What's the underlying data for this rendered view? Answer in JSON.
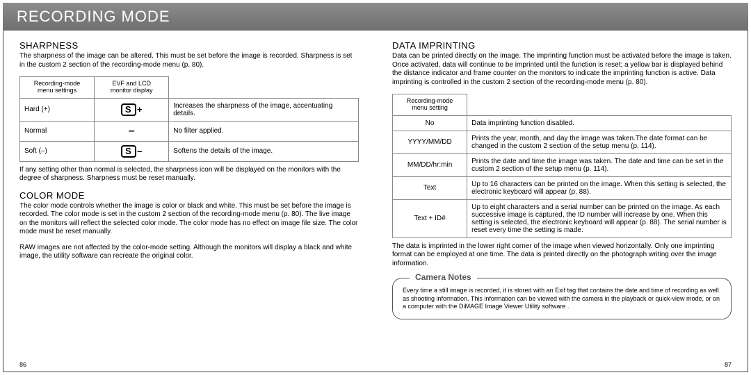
{
  "header": {
    "title": "RECORDING MODE"
  },
  "left": {
    "sharpness": {
      "heading": "SHARPNESS",
      "intro": "The sharpness of the image can be altered. This must be set before the image is recorded. Sharpness is set in the custom 2 section of the recording-mode menu (p. 80).",
      "table_headers": {
        "col1": "Recording-mode\nmenu settings",
        "col2": "EVF and LCD\nmonitor display"
      },
      "rows": [
        {
          "setting": "Hard (+)",
          "icon": "S+",
          "desc": "Increases the sharpness of the image, accentuating details."
        },
        {
          "setting": "Normal",
          "icon": "–",
          "desc": "No filter applied."
        },
        {
          "setting": "Soft (–)",
          "icon": "S-",
          "desc": "Softens the details of the image."
        }
      ],
      "footer": "If any setting other than normal is selected, the sharpness icon will be displayed on the monitors with the degree of sharpness. Sharpness must be reset manually."
    },
    "colormode": {
      "heading": "COLOR MODE",
      "p1": "The color mode controls whether the image is color or black and white. This must be set before the image is recorded. The color mode is set in the custom 2 section of the recording-mode menu (p. 80). The live image on the monitors will reflect the selected color mode. The color mode has no effect on image file size. The color mode must be reset manually.",
      "p2": "RAW images are not affected by the color-mode setting. Although the monitors will display a black and white image, the utility software can recreate the original color."
    },
    "page_num": "86"
  },
  "right": {
    "imprint": {
      "heading": "DATA IMPRINTING",
      "intro": "Data can be printed directly on the image. The imprinting function must be activated before the image is taken. Once activated, data will continue to be imprinted until the function is reset; a yellow bar is displayed behind the distance indicator and frame counter on the monitors to indicate the imprinting function is active. Data imprinting is controlled in the custom 2 section of the recording-mode menu (p. 80).",
      "table_header": "Recording-mode\nmenu setting",
      "rows": [
        {
          "setting": "No",
          "desc": "Data imprinting function disabled."
        },
        {
          "setting": "YYYY/MM/DD",
          "desc": "Prints the year, month, and day the image was taken.The date format can be changed in the custom 2 section of the setup menu (p. 114)."
        },
        {
          "setting": "MM/DD/hr:min",
          "desc": "Prints the date and time the image was taken. The date and time can be set in the custom 2 section of the setup menu (p. 114)."
        },
        {
          "setting": "Text",
          "desc": "Up to 16 characters can be printed on the image. When this setting is selected, the electronic keyboard will appear (p. 88)."
        },
        {
          "setting": "Text + ID#",
          "desc": "Up to eight characters and a serial number can be printed on the image. As each successive image is captured, the ID number will increase by one. When this setting is selected, the electronic keyboard will appear (p. 88). The serial number is reset every time the setting is made."
        }
      ],
      "footer": "The data is imprinted in the lower right corner of the image when viewed horizontally. Only one imprinting format can be employed at one time. The data is printed directly on the photograph writing over the image information."
    },
    "notes": {
      "label": "Camera Notes",
      "text": "Every time a still image is recorded, it is stored with an Exif tag that contains the date and time of recording as well as shooting information. This information can be viewed with the camera in the playback or quick-view mode, or on a computer with the DiMAGE Image Viewer Utility software ."
    },
    "page_num": "87"
  }
}
